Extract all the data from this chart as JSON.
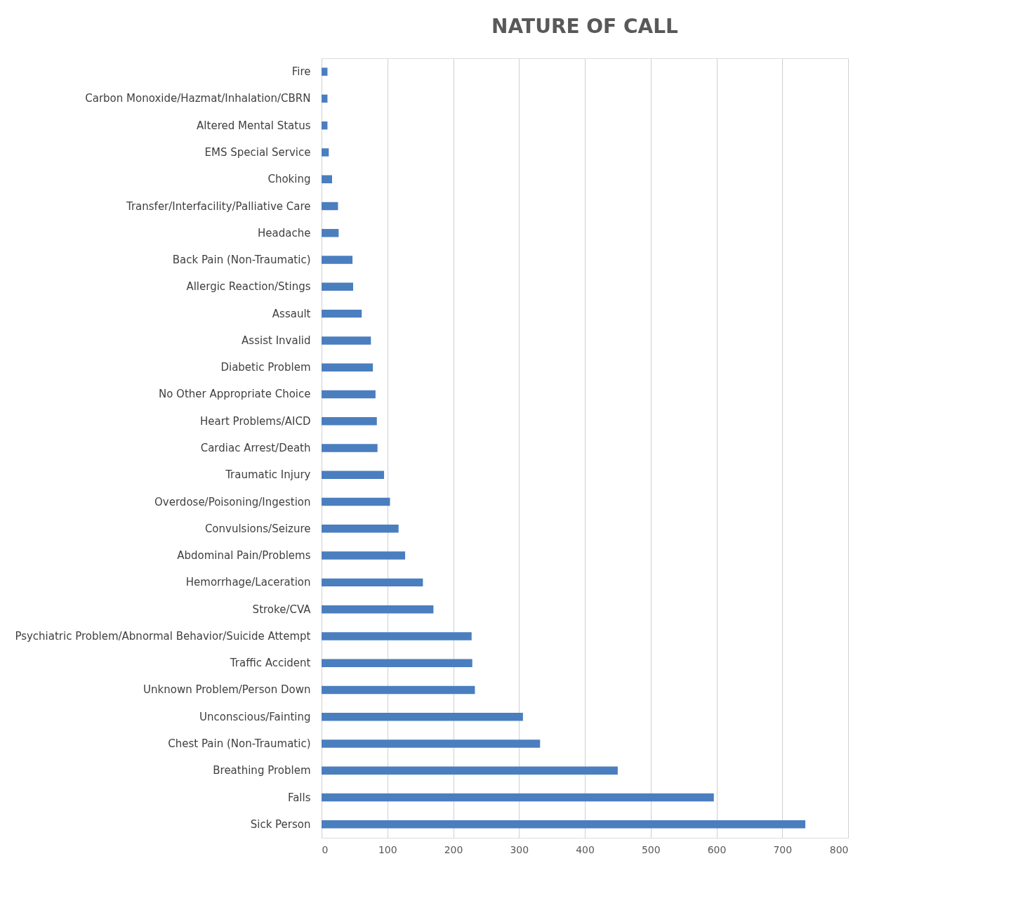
{
  "chart_data": {
    "type": "bar",
    "orientation": "horizontal",
    "title": "NATURE OF CALL",
    "categories": [
      "Fire",
      "Carbon Monoxide/Hazmat/Inhalation/CBRN",
      "Altered Mental Status",
      "EMS Special Service",
      "Choking",
      "Transfer/Interfacility/Palliative Care",
      "Headache",
      "Back Pain (Non-Traumatic)",
      "Allergic Reaction/Stings",
      "Assault",
      "Assist Invalid",
      "Diabetic Problem",
      "No Other Appropriate Choice",
      "Heart Problems/AICD",
      "Cardiac Arrest/Death",
      "Traumatic Injury",
      "Overdose/Poisoning/Ingestion",
      "Convulsions/Seizure",
      "Abdominal Pain/Problems",
      "Hemorrhage/Laceration",
      "Stroke/CVA",
      "Psychiatric Problem/Abnormal Behavior/Suicide Attempt",
      "Traffic Accident",
      "Unknown Problem/Person Down",
      "Unconscious/Fainting",
      "Chest Pain (Non-Traumatic)",
      "Breathing Problem",
      "Falls",
      "Sick Person"
    ],
    "values": [
      9,
      9,
      9,
      11,
      16,
      25,
      26,
      47,
      48,
      61,
      75,
      78,
      82,
      84,
      85,
      95,
      104,
      117,
      127,
      154,
      170,
      228,
      229,
      233,
      306,
      332,
      450,
      596,
      735
    ],
    "color": "#4a7ebf",
    "xlim": [
      0,
      800
    ],
    "xticks": [
      0,
      100,
      200,
      300,
      400,
      500,
      600,
      700,
      800
    ],
    "grid": "x"
  }
}
